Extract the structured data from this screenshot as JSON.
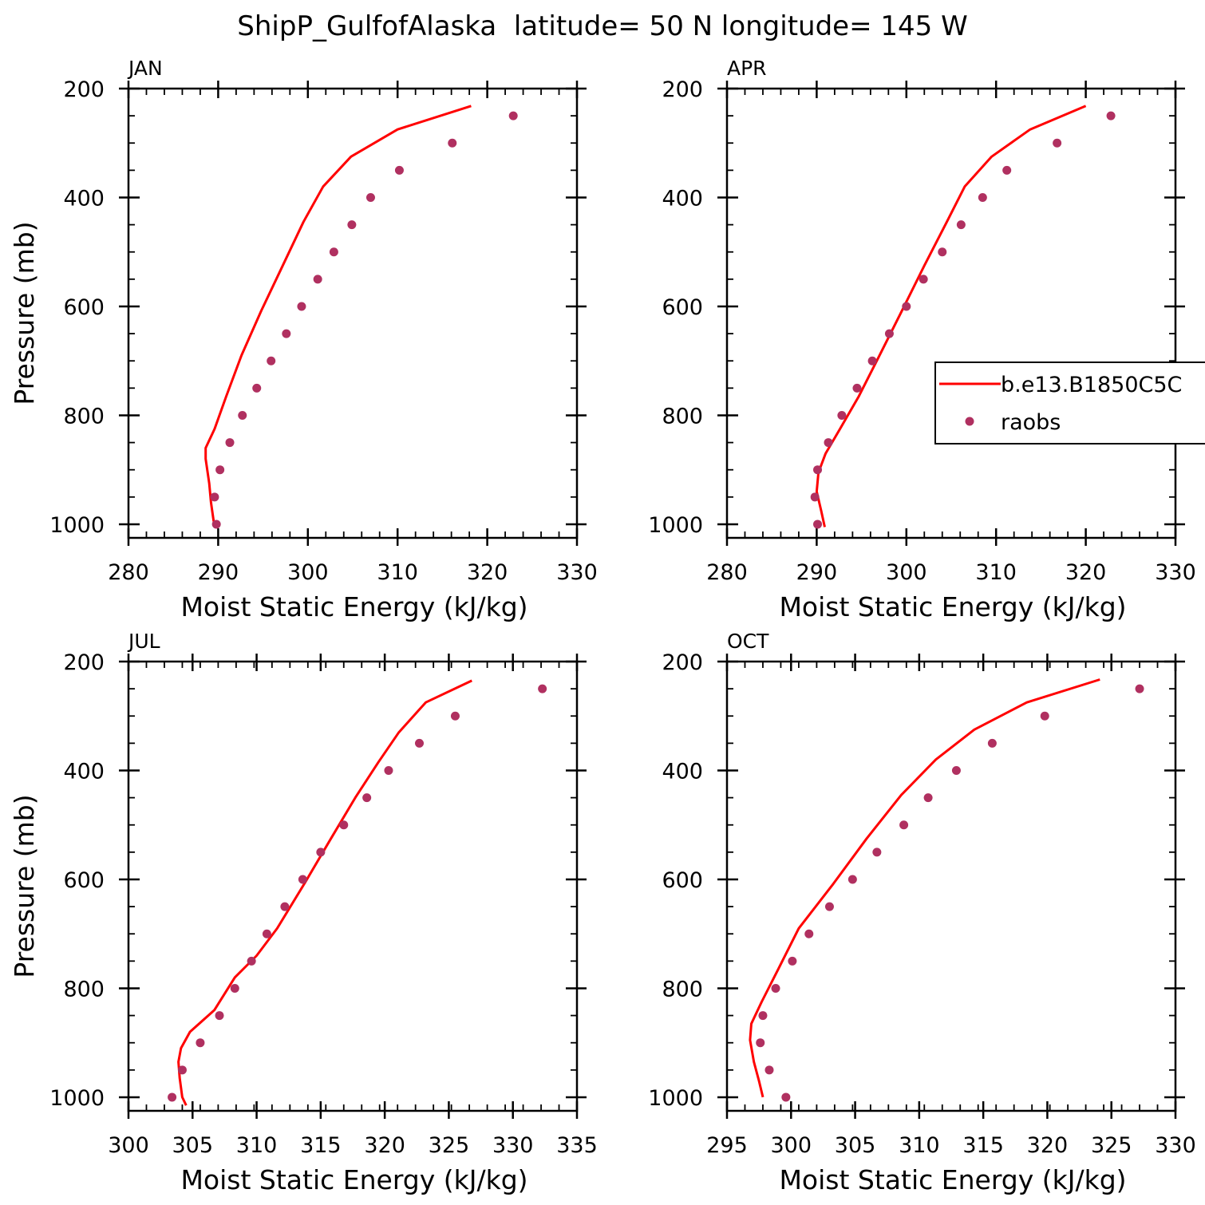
{
  "title": "ShipP_GulfofAlaska  latitude= 50 N longitude= 145 W",
  "colors": {
    "model": "#ff0000",
    "obs": "#b03060",
    "axis": "#000000"
  },
  "legend": {
    "panel": 1,
    "entries": [
      {
        "label": "b.e13.B1850C5C",
        "marker": "line"
      },
      {
        "label": "raobs",
        "marker": "dot"
      }
    ]
  },
  "chart_data": [
    {
      "type": "line",
      "panel_label": "JAN",
      "xlabel": "Moist Static Energy (kJ/kg)",
      "ylabel": "Pressure (mb)",
      "xlim": [
        280,
        330
      ],
      "ylim": [
        1025,
        200
      ],
      "xticks": [
        280,
        290,
        300,
        310,
        320,
        330
      ],
      "yticks": [
        200,
        400,
        600,
        800,
        1000
      ],
      "series": [
        {
          "name": "b.e13.B1850C5C",
          "kind": "line",
          "x": [
            318.2,
            310.0,
            304.8,
            301.7,
            299.5,
            297.2,
            294.8,
            292.6,
            290.9,
            289.6,
            288.6,
            288.6,
            289.0,
            289.2,
            289.5
          ],
          "y": [
            232,
            275,
            325,
            380,
            445,
            525,
            608,
            690,
            765,
            825,
            860,
            880,
            925,
            960,
            995
          ]
        },
        {
          "name": "raobs",
          "kind": "scatter",
          "x": [
            322.9,
            316.1,
            310.2,
            307.0,
            304.9,
            302.9,
            301.1,
            299.3,
            297.6,
            295.9,
            294.3,
            292.7,
            291.3,
            290.2,
            289.6,
            289.8
          ],
          "y": [
            250,
            300,
            350,
            400,
            450,
            500,
            550,
            600,
            650,
            700,
            750,
            800,
            850,
            900,
            950,
            1000
          ]
        }
      ]
    },
    {
      "type": "line",
      "panel_label": "APR",
      "xlabel": "Moist Static Energy (kJ/kg)",
      "ylabel": "",
      "xlim": [
        280,
        330
      ],
      "ylim": [
        1025,
        200
      ],
      "xticks": [
        280,
        290,
        300,
        310,
        320,
        330
      ],
      "yticks": [
        200,
        400,
        600,
        800,
        1000
      ],
      "series": [
        {
          "name": "b.e13.B1850C5C",
          "kind": "line",
          "x": [
            320.0,
            313.8,
            309.5,
            306.5,
            304.5,
            302.0,
            299.5,
            297.0,
            294.7,
            292.6,
            291.0,
            290.2,
            290.0,
            290.5,
            290.9
          ],
          "y": [
            232,
            275,
            325,
            380,
            445,
            525,
            608,
            690,
            765,
            825,
            870,
            905,
            940,
            975,
            1005
          ]
        },
        {
          "name": "raobs",
          "kind": "scatter",
          "x": [
            322.8,
            316.8,
            311.2,
            308.5,
            306.1,
            304.0,
            301.9,
            300.0,
            298.1,
            296.2,
            294.5,
            292.8,
            291.3,
            290.1,
            289.8,
            290.1
          ],
          "y": [
            250,
            300,
            350,
            400,
            450,
            500,
            550,
            600,
            650,
            700,
            750,
            800,
            850,
            900,
            950,
            1000
          ]
        }
      ]
    },
    {
      "type": "line",
      "panel_label": "JUL",
      "xlabel": "Moist Static Energy (kJ/kg)",
      "ylabel": "Pressure (mb)",
      "xlim": [
        300,
        335
      ],
      "ylim": [
        1025,
        200
      ],
      "xticks": [
        300,
        305,
        310,
        315,
        320,
        325,
        330,
        335
      ],
      "yticks": [
        200,
        400,
        600,
        800,
        1000
      ],
      "series": [
        {
          "name": "b.e13.B1850C5C",
          "kind": "line",
          "x": [
            326.8,
            323.2,
            321.1,
            319.5,
            317.7,
            315.8,
            313.8,
            311.6,
            310.0,
            308.3,
            306.7,
            304.8,
            304.1,
            303.9,
            304.0,
            304.2,
            304.5
          ],
          "y": [
            235,
            275,
            330,
            385,
            450,
            525,
            605,
            690,
            740,
            780,
            840,
            880,
            910,
            935,
            965,
            1000,
            1015
          ]
        },
        {
          "name": "raobs",
          "kind": "scatter",
          "x": [
            332.3,
            325.5,
            322.7,
            320.3,
            318.6,
            316.8,
            315.0,
            313.6,
            312.2,
            310.8,
            309.6,
            308.3,
            307.1,
            305.6,
            304.2,
            303.4
          ],
          "y": [
            250,
            300,
            350,
            400,
            450,
            500,
            550,
            600,
            650,
            700,
            750,
            800,
            850,
            900,
            950,
            1000
          ]
        }
      ]
    },
    {
      "type": "line",
      "panel_label": "OCT",
      "xlabel": "Moist Static Energy (kJ/kg)",
      "ylabel": "",
      "xlim": [
        295,
        330
      ],
      "ylim": [
        1025,
        200
      ],
      "xticks": [
        295,
        300,
        305,
        310,
        315,
        320,
        325,
        330
      ],
      "yticks": [
        200,
        400,
        600,
        800,
        1000
      ],
      "series": [
        {
          "name": "b.e13.B1850C5C",
          "kind": "line",
          "x": [
            324.1,
            318.4,
            314.3,
            311.3,
            308.6,
            305.9,
            303.3,
            300.6,
            299.0,
            297.7,
            296.9,
            296.8,
            297.1,
            297.5,
            297.8
          ],
          "y": [
            233,
            275,
            325,
            380,
            445,
            525,
            608,
            690,
            765,
            825,
            865,
            895,
            935,
            970,
            1000
          ]
        },
        {
          "name": "raobs",
          "kind": "scatter",
          "x": [
            327.2,
            319.8,
            315.7,
            312.9,
            310.7,
            308.8,
            306.7,
            304.8,
            303.0,
            301.4,
            300.1,
            298.8,
            297.8,
            297.6,
            298.3,
            299.6
          ],
          "y": [
            250,
            300,
            350,
            400,
            450,
            500,
            550,
            600,
            650,
            700,
            750,
            800,
            850,
            900,
            950,
            1000
          ]
        }
      ]
    }
  ]
}
